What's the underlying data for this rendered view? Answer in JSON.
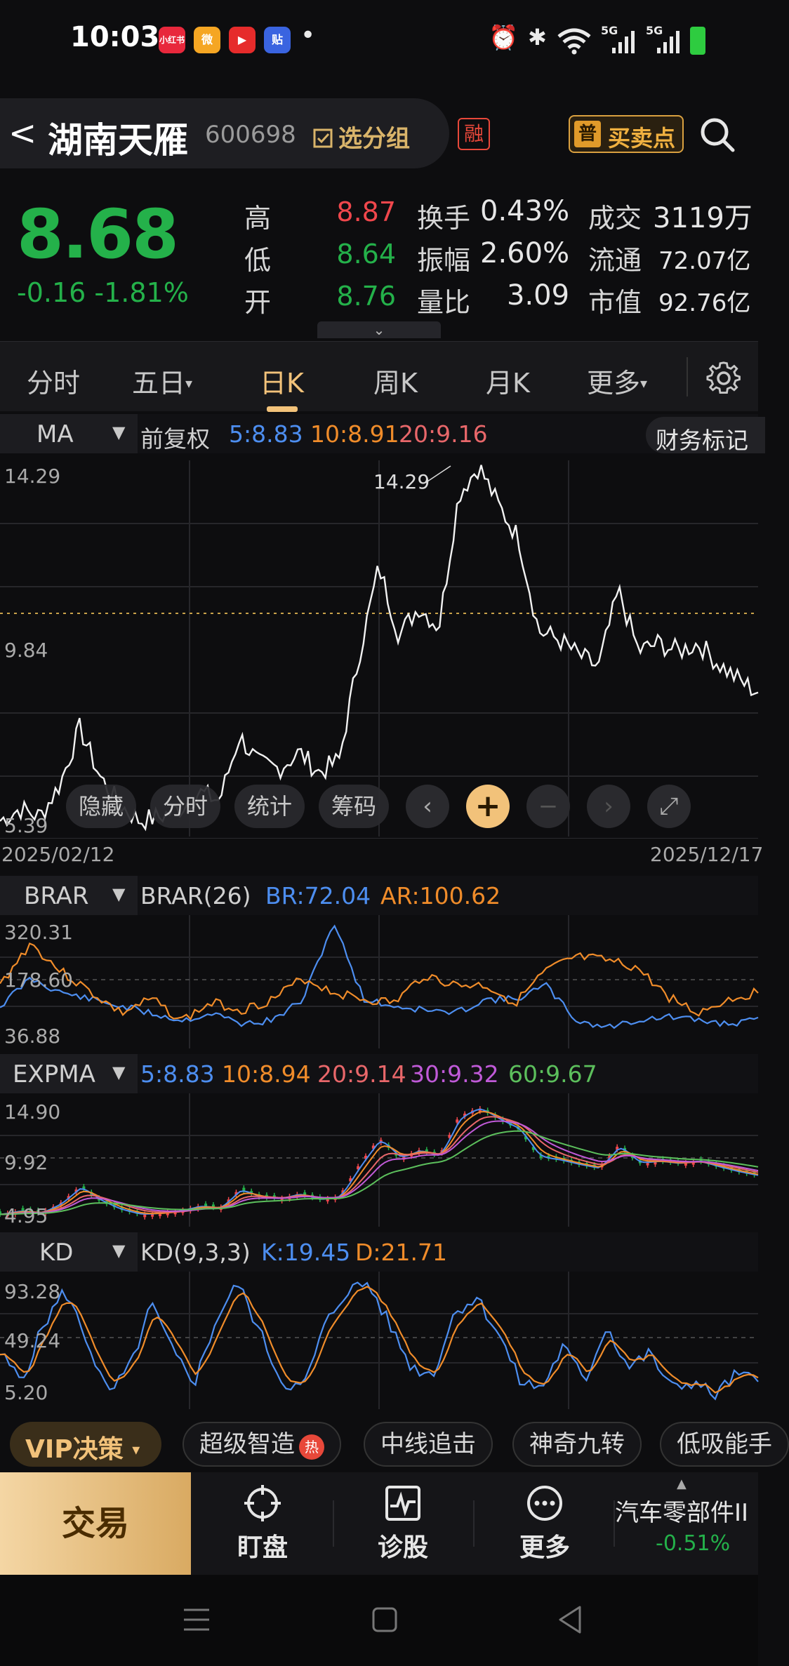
{
  "status_bar": {
    "time": "10:03",
    "apps": [
      {
        "name": "xiaohongshu",
        "label": "小红书",
        "color": "#e8283c"
      },
      {
        "name": "weibo",
        "label": "微",
        "color": "#f5a623"
      },
      {
        "name": "video",
        "label": "▶",
        "color": "#e62b2b"
      },
      {
        "name": "tieba",
        "label": "贴",
        "color": "#3a64e0"
      }
    ],
    "dot": "•",
    "alarm_icon": "⏰",
    "bluetooth_icon": "✱",
    "net1": "5G",
    "net2": "5G",
    "battery_color": "#2ecc40"
  },
  "header": {
    "back": "<",
    "name": "湖南天雁",
    "code": "600698",
    "group_button": "选分组",
    "margin_badge": "融",
    "buysell_badge": "普",
    "buysell_label": "买卖点"
  },
  "quote": {
    "price": "8.68",
    "change": "-0.16",
    "change_pct": "-1.81%",
    "high_label": "高",
    "high": "8.87",
    "low_label": "低",
    "low": "8.64",
    "open_label": "开",
    "open": "8.76",
    "turnover_label": "换手",
    "turnover": "0.43%",
    "amplitude_label": "振幅",
    "amplitude": "2.60%",
    "vol_ratio_label": "量比",
    "vol_ratio": "3.09",
    "amount_label": "成交",
    "amount": "3119万",
    "float_label": "流通",
    "float_cap": "72.07亿",
    "mcap_label": "市值",
    "mcap": "92.76亿",
    "collapse_icon": "⌄"
  },
  "tabs": [
    "分时",
    "五日",
    "日K",
    "周K",
    "月K",
    "更多"
  ],
  "tab_dropdown": "▾",
  "active_tab": "日K",
  "ma_bar": {
    "selector": "MA",
    "adjust": "前复权",
    "ma5": "5:8.83",
    "ma10": "10:8.91",
    "ma20": "20:9.16",
    "finance_mark": "财务标记"
  },
  "main_chart_labels": {
    "top": "14.29",
    "mid": "9.84",
    "bottom": "5.39",
    "peak": "14.29",
    "date_start": "2025/02/12",
    "date_end": "2025/12/17"
  },
  "chart_toolbar": {
    "hide": "隐藏",
    "intraday": "分时",
    "stats": "统计",
    "chips": "筹码",
    "prev": "‹",
    "zoom_in": "+",
    "zoom_out": "−",
    "next": "›",
    "fullscreen": "⤢"
  },
  "brar": {
    "selector": "BRAR",
    "title": "BRAR(26)",
    "br": "BR:72.04",
    "ar": "AR:100.62",
    "top": "320.31",
    "mid": "178.60",
    "bottom": "36.88"
  },
  "expma": {
    "selector": "EXPMA",
    "e5": "5:8.83",
    "e10": "10:8.94",
    "e20": "20:9.14",
    "e30": "30:9.32",
    "e60": "60:9.67",
    "top": "14.90",
    "mid": "9.92",
    "bottom": "4.95"
  },
  "kd": {
    "selector": "KD",
    "title": "KD(9,3,3)",
    "k": "K:19.45",
    "d": "D:21.71",
    "top": "93.28",
    "mid": "49.24",
    "bottom": "5.20"
  },
  "strategy_strip": {
    "vip": "VIP决策",
    "vip_arrow": "▾",
    "chips": [
      "超级智造",
      "中线追击",
      "神奇九转",
      "低吸能手"
    ],
    "hot_badge": "热"
  },
  "bottom_nav": {
    "trade": "交易",
    "watch": "盯盘",
    "diagnose": "诊股",
    "more": "更多",
    "sector_name": "汽车零部件II",
    "sector_change": "-0.51%",
    "sector_arrow": "▲"
  },
  "colors": {
    "green": "#24b14a",
    "red": "#f0474c",
    "gold": "#f2c27a",
    "ma5": "#4d8ef0",
    "ma10": "#f08c2a",
    "ma20": "#e8676a",
    "e30": "#c05ad8",
    "e60": "#5cbf5c"
  },
  "chart_data": {
    "type": "line",
    "x_range": [
      "2025/02/12",
      "2025/12/17"
    ],
    "ylim": [
      5.39,
      14.29
    ],
    "reference_line": 9.84,
    "peak": 14.29,
    "last_close": 8.68,
    "approx_close_series": [
      5.5,
      5.8,
      5.6,
      6.4,
      7.8,
      6.6,
      5.9,
      5.5,
      5.6,
      5.8,
      6.2,
      6.0,
      7.6,
      6.9,
      6.8,
      7.2,
      6.7,
      7.0,
      9.6,
      11.8,
      10.1,
      10.8,
      10.3,
      13.6,
      14.29,
      13.3,
      12.5,
      10.2,
      10.0,
      9.6,
      9.3,
      11.2,
      9.7,
      9.9,
      9.7,
      9.9,
      9.4,
      9.0,
      8.68
    ]
  }
}
